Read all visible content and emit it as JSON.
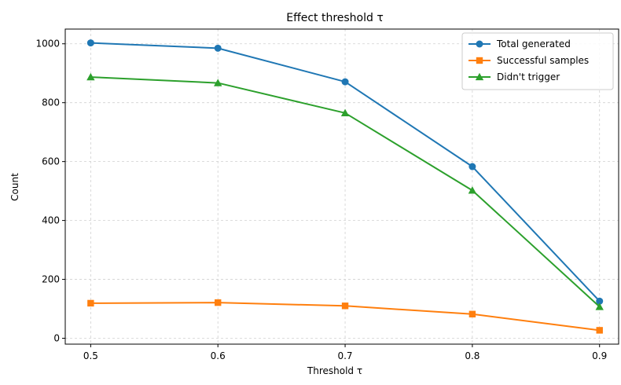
{
  "chart_data": {
    "type": "line",
    "title": "Effect threshold τ",
    "xlabel": "Threshold τ",
    "ylabel": "Count",
    "x": [
      0.5,
      0.6,
      0.7,
      0.8,
      0.9
    ],
    "x_tick_labels": [
      "0.5",
      "0.6",
      "0.7",
      "0.8",
      "0.9"
    ],
    "xlim": [
      0.48,
      0.915
    ],
    "ylim": [
      -20,
      1050
    ],
    "y_ticks": [
      0,
      200,
      400,
      600,
      800,
      1000
    ],
    "y_tick_labels": [
      "0",
      "200",
      "400",
      "600",
      "800",
      "1000"
    ],
    "grid": true,
    "legend_position": "top-right",
    "series": [
      {
        "name": "Total generated",
        "color": "#1f77b4",
        "marker": "circle",
        "values": [
          1003,
          985,
          871,
          583,
          126
        ]
      },
      {
        "name": "Successful samples",
        "color": "#ff7f0e",
        "marker": "square",
        "values": [
          119,
          121,
          110,
          82,
          27
        ]
      },
      {
        "name": "Didn't trigger",
        "color": "#2ca02c",
        "marker": "triangle",
        "values": [
          887,
          867,
          765,
          502,
          107
        ]
      }
    ]
  }
}
